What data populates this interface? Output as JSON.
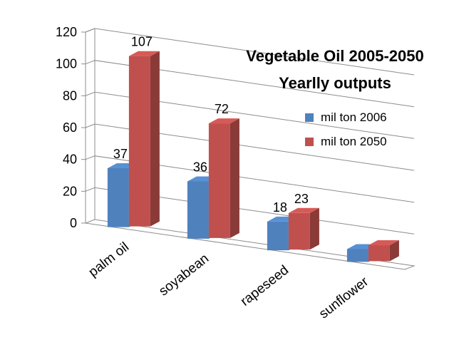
{
  "chart_data": {
    "type": "bar",
    "title": "Vegetable Oil 2005-2050",
    "subtitle": "Yearlly outputs",
    "categories": [
      "palm oil",
      "soyabean",
      "rapeseed",
      "sunflower"
    ],
    "series": [
      {
        "name": "mil ton 2006",
        "values": [
          37,
          36,
          18,
          8
        ],
        "labels": [
          "37",
          "36",
          "18",
          ""
        ],
        "color": "#4F81BD"
      },
      {
        "name": "mil ton 2050",
        "values": [
          107,
          72,
          23,
          10
        ],
        "labels": [
          "107",
          "72",
          "23",
          ""
        ],
        "color": "#C0504D"
      }
    ],
    "yticks": [
      "0",
      "20",
      "40",
      "60",
      "80",
      "100",
      "120"
    ],
    "ylim": [
      0,
      120
    ],
    "grid": true,
    "legend_position": "right",
    "style": "3d-clustered-column"
  }
}
